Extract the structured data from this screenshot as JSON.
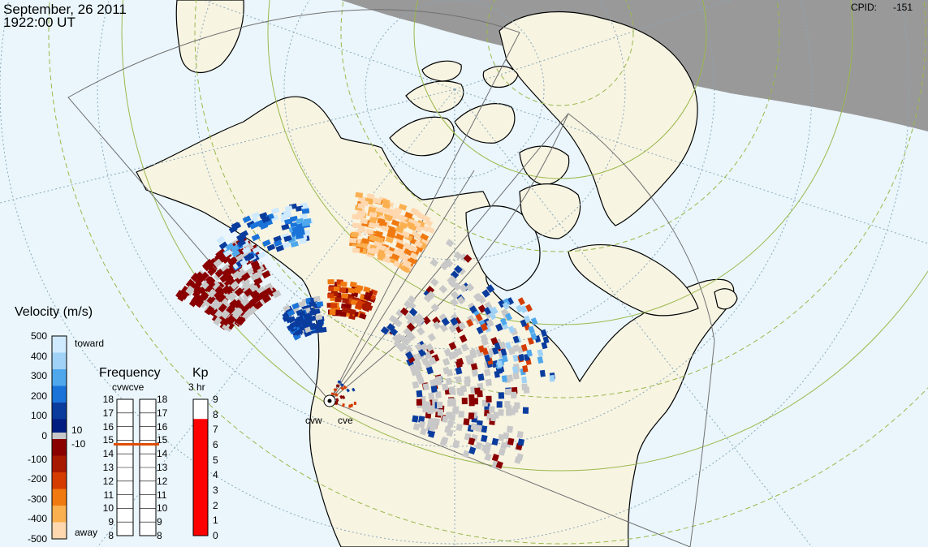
{
  "header": {
    "date": "September, 26 2011",
    "time": "1922:00 UT",
    "cpid_label": "CPID:",
    "cpid_value": "-151"
  },
  "radars": {
    "west_label": "cvw",
    "east_label": "cve"
  },
  "velocity_scale": {
    "title": "Velocity (m/s)",
    "ticks": [
      "500",
      "400",
      "300",
      "200",
      "100",
      "0",
      "-100",
      "-200",
      "-300",
      "-400",
      "-500"
    ],
    "toward_label": "toward",
    "away_label": "away",
    "gs_pos_label": "10",
    "gs_neg_label": "-10",
    "colors": [
      "#cfeaff",
      "#9fd2f6",
      "#4fa8ec",
      "#1a73d8",
      "#0a3c9e",
      "#001c80",
      "#8a0000",
      "#a81a00",
      "#d43c00",
      "#f07a10",
      "#fbb050",
      "#ffd8b0"
    ]
  },
  "frequency_scale": {
    "title": "Frequency",
    "subtitle": "cvwcve",
    "ticks": [
      "18",
      "17",
      "16",
      "15",
      "14",
      "13",
      "12",
      "11",
      "10",
      "9",
      "8"
    ],
    "cvw_mhz": 14.7,
    "cve_mhz": 14.7,
    "marker_color": "#e04a00"
  },
  "kp_scale": {
    "title": "Kp",
    "subtitle": "3 hr",
    "ticks": [
      "9",
      "8",
      "7",
      "6",
      "5",
      "4",
      "3",
      "2",
      "1",
      "0"
    ],
    "kp_value": 7.7,
    "fill_color": "#ff0000"
  },
  "map_colors": {
    "ocean": "#eaf6fc",
    "land": "#f7f4e2",
    "night": "#999999",
    "grid": "#8aa8b8",
    "contour": "#9ab84a",
    "ground_scatter": "#c8c8c8"
  }
}
